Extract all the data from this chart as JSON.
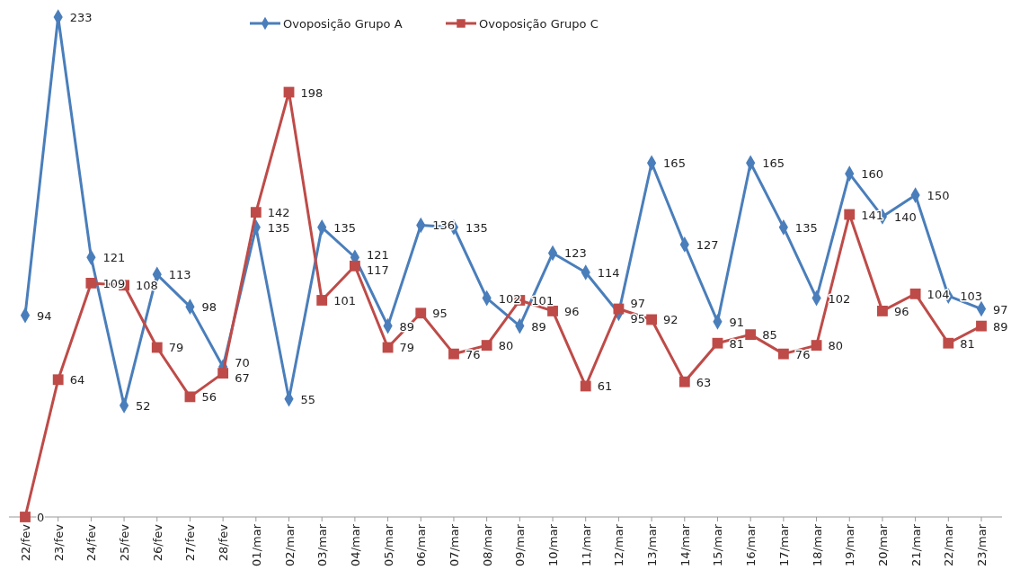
{
  "chart_data": {
    "type": "line",
    "categories": [
      "22/fev",
      "23/fev",
      "24/fev",
      "25/fev",
      "26/fev",
      "27/fev",
      "28/fev",
      "01/mar",
      "02/mar",
      "03/mar",
      "04/mar",
      "05/mar",
      "06/mar",
      "07/mar",
      "08/mar",
      "09/mar",
      "10/mar",
      "11/mar",
      "12/mar",
      "13/mar",
      "14/mar",
      "15/mar",
      "16/mar",
      "17/mar",
      "18/mar",
      "19/mar",
      "20/mar",
      "21/mar",
      "22/mar",
      "23/mar"
    ],
    "series": [
      {
        "name": "Ovoposição Grupo A",
        "color": "#4a7ebb",
        "marker": "diamond",
        "values": [
          94,
          233,
          121,
          52,
          113,
          98,
          70,
          135,
          55,
          135,
          121,
          89,
          136,
          135,
          102,
          89,
          123,
          114,
          95,
          165,
          127,
          91,
          165,
          135,
          102,
          160,
          140,
          150,
          103,
          97
        ]
      },
      {
        "name": "Ovoposição Grupo C",
        "color": "#be4b48",
        "marker": "square",
        "values": [
          0,
          64,
          109,
          108,
          79,
          56,
          67,
          142,
          198,
          101,
          117,
          79,
          95,
          76,
          80,
          101,
          96,
          61,
          97,
          92,
          63,
          81,
          85,
          76,
          80,
          141,
          96,
          104,
          81,
          89
        ]
      }
    ],
    "data_labels": true,
    "legend": "top",
    "grid": false,
    "line_style": "solid"
  }
}
